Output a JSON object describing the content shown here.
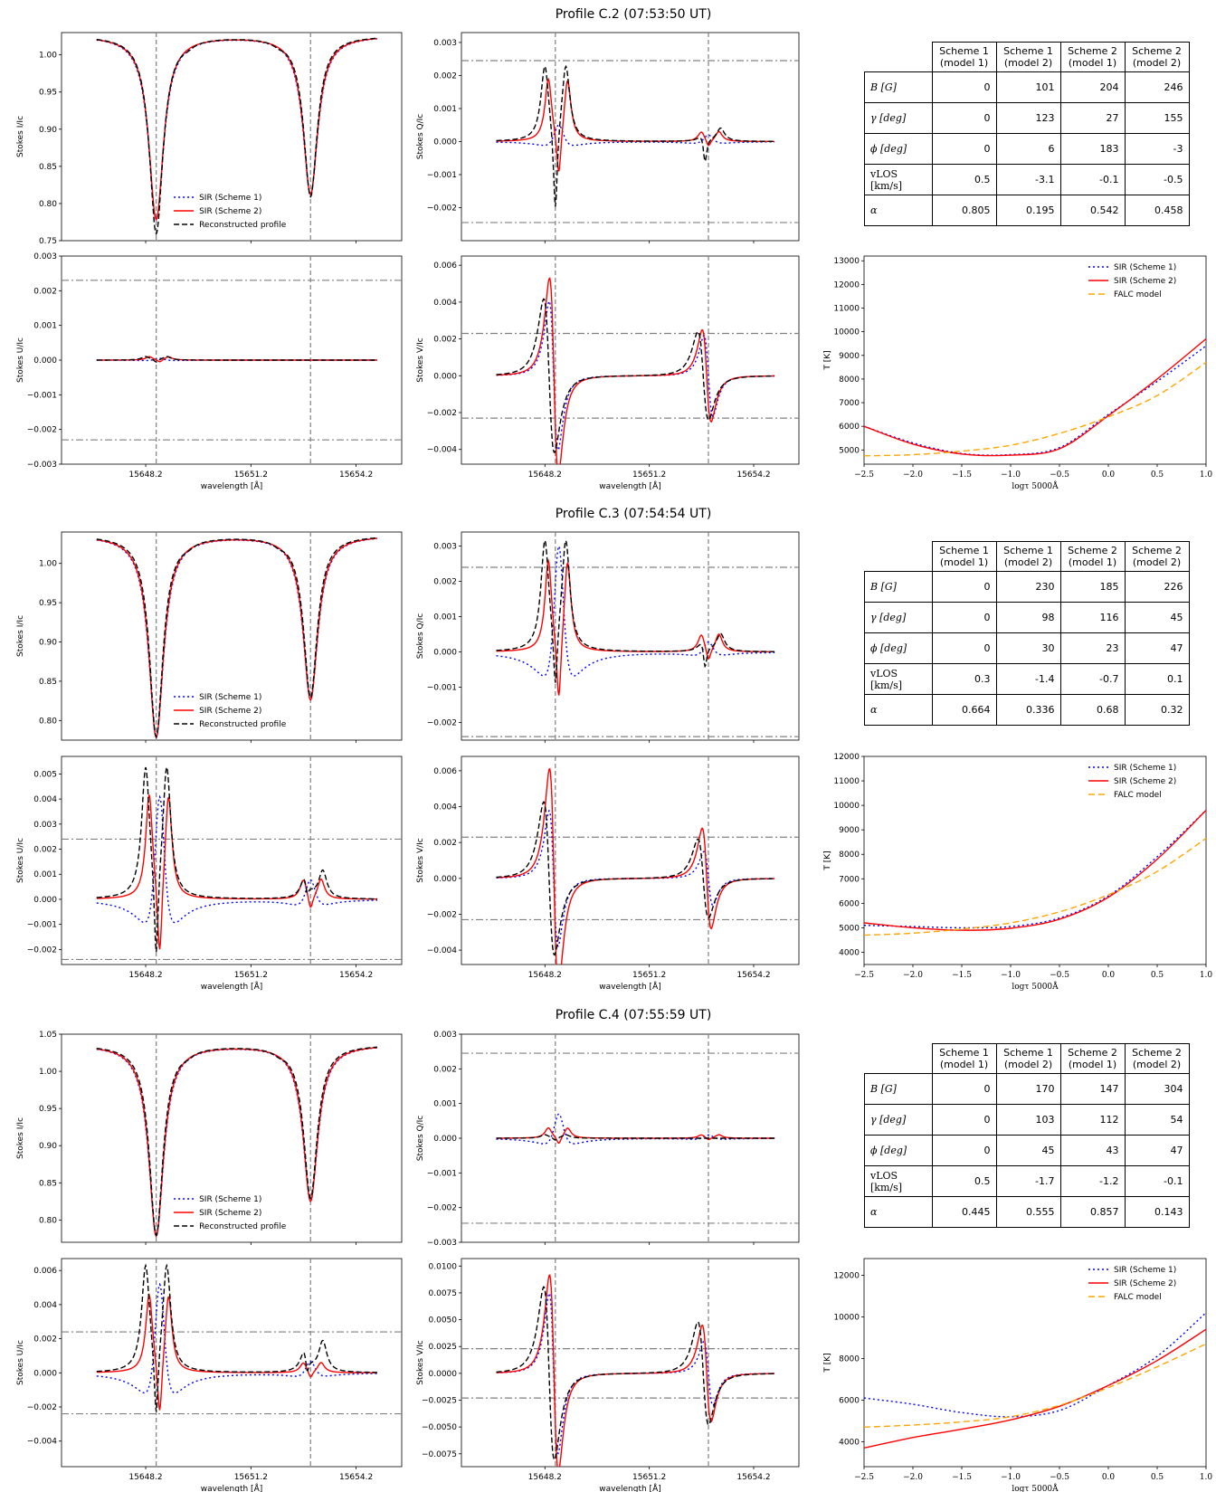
{
  "common": {
    "wavelength_ticks": [
      15648.2,
      15651.2,
      15654.2
    ],
    "wavelength_tick_labels": [
      "15648.2",
      "15651.2",
      "15654.2"
    ],
    "wavelength_xlabel": "wavelength [Å]",
    "line_centers": [
      15648.5,
      15652.9
    ],
    "xlim": [
      15645.8,
      15655.5
    ],
    "tau_xlabel": "logτ 5000Å",
    "tau_xlim": [
      -2.5,
      1.0
    ],
    "tau_ticks": [
      -2.5,
      -2.0,
      -1.5,
      -1.0,
      -0.5,
      0.0,
      0.5,
      1.0
    ],
    "tau_tick_labels": [
      "−2.5",
      "−2.0",
      "−1.5",
      "−1.0",
      "−0.5",
      "0.0",
      "0.5",
      "1.0"
    ],
    "ylabels": {
      "I": "Stokes I/Ic",
      "Q": "Stokes Q/Ic",
      "U": "Stokes U/Ic",
      "V": "Stokes V/Ic",
      "T": "T [K]"
    },
    "legend_stokes": [
      "SIR (Scheme 1)",
      "SIR (Scheme 2)",
      "Reconstructed profile"
    ],
    "legend_temp": [
      "SIR (Scheme 1)",
      "SIR (Scheme 2)",
      "FALC model"
    ],
    "colors": {
      "scheme1": "#0000ff",
      "scheme2": "#ff0000",
      "reconstructed": "#000000",
      "falc": "#ffa500",
      "guide": "#808080"
    },
    "table_columns": [
      "Scheme 1\n(model 1)",
      "Scheme 1\n(model 2)",
      "Scheme 2\n(model 1)",
      "Scheme 2\n(model 2)"
    ],
    "table_rows": [
      "B [G]",
      "γ [deg]",
      "ϕ [deg]",
      "vLOS [km/s]",
      "α"
    ]
  },
  "panels": [
    {
      "title": "Profile C.2 (07:53:50 UT)",
      "table_values": [
        [
          "0",
          "101",
          "204",
          "246"
        ],
        [
          "0",
          "123",
          "27",
          "155"
        ],
        [
          "0",
          "6",
          "183",
          "-3"
        ],
        [
          "0.5",
          "-3.1",
          "-0.1",
          "-0.5"
        ],
        [
          "0.805",
          "0.195",
          "0.542",
          "0.458"
        ]
      ],
      "chart_data": [
        {
          "type": "line",
          "panel": "I",
          "ylim": [
            0.75,
            1.03
          ],
          "yticks": [
            0.75,
            0.8,
            0.85,
            0.9,
            0.95,
            1.0
          ],
          "ytick_labels": [
            "0.75",
            "0.80",
            "0.85",
            "0.90",
            "0.95",
            "1.00"
          ],
          "continuum": 1.026,
          "depths": [
            0.779,
            0.813
          ],
          "rec_depths": [
            0.76,
            0.81
          ],
          "hlines": []
        },
        {
          "type": "line",
          "panel": "Q",
          "ylim": [
            -0.003,
            0.0033
          ],
          "yticks": [
            -0.002,
            -0.001,
            0,
            0.001,
            0.002,
            0.003
          ],
          "ytick_labels": [
            "−0.002",
            "−0.001",
            "0.000",
            "0.001",
            "0.002",
            "0.003"
          ],
          "kind": "Q",
          "amp1": [
            0.0005,
            0.0019,
            0.0023,
            0.0031
          ],
          "amp2": [
            0.0002,
            0.0003,
            0.0004,
            0.0011
          ],
          "hlines": [
            0.00245,
            -0.00245
          ]
        },
        {
          "type": "line",
          "panel": "U",
          "ylim": [
            -0.003,
            0.003
          ],
          "yticks": [
            -0.003,
            -0.002,
            -0.001,
            0,
            0.001,
            0.002,
            0.003
          ],
          "ytick_labels": [
            "−0.003",
            "−0.002",
            "−0.001",
            "0.000",
            "0.001",
            "0.002",
            "0.003"
          ],
          "kind": "U",
          "amp1": [
            5e-05,
            0.0001,
            0.0001,
            0.0001
          ],
          "amp2": [
            0,
            0,
            0,
            0
          ],
          "hlines": [
            0.0023,
            -0.0023
          ]
        },
        {
          "type": "line",
          "panel": "V",
          "ylim": [
            -0.0048,
            0.0065
          ],
          "yticks": [
            -0.004,
            -0.002,
            0,
            0.002,
            0.004,
            0.006
          ],
          "ytick_labels": [
            "−0.004",
            "−0.002",
            "0.000",
            "0.002",
            "0.004",
            "0.006"
          ],
          "kind": "V",
          "amp1": [
            0.0045,
            0.0059,
            0.0044
          ],
          "amp2": [
            0.0022,
            0.0025,
            0.0024
          ],
          "hlines": [
            0.0023,
            -0.0023
          ]
        },
        {
          "type": "line",
          "panel": "T",
          "ylim": [
            4400,
            13200
          ],
          "yticks": [
            5000,
            6000,
            7000,
            8000,
            9000,
            10000,
            11000,
            12000,
            13000
          ],
          "ytick_labels": [
            "5000",
            "6000",
            "7000",
            "8000",
            "9000",
            "10000",
            "11000",
            "12000",
            "13000"
          ],
          "s1": [
            [
              -2.5,
              6000
            ],
            [
              -2.0,
              5300
            ],
            [
              -1.5,
              4850
            ],
            [
              -1.0,
              4800
            ],
            [
              -0.5,
              5100
            ],
            [
              0.0,
              6500
            ],
            [
              0.5,
              7900
            ],
            [
              1.0,
              9400
            ]
          ],
          "s2": [
            [
              -2.5,
              6000
            ],
            [
              -2.0,
              5250
            ],
            [
              -1.5,
              4830
            ],
            [
              -1.0,
              4780
            ],
            [
              -0.5,
              5050
            ],
            [
              0.0,
              6450
            ],
            [
              0.5,
              8000
            ],
            [
              1.0,
              9700
            ]
          ],
          "falc": [
            [
              -2.5,
              4750
            ],
            [
              -2.0,
              4800
            ],
            [
              -1.5,
              4950
            ],
            [
              -1.0,
              5200
            ],
            [
              -0.5,
              5700
            ],
            [
              0.0,
              6400
            ],
            [
              0.5,
              7300
            ],
            [
              1.0,
              8700
            ]
          ]
        }
      ]
    },
    {
      "title": "Profile C.3 (07:54:54 UT)",
      "table_values": [
        [
          "0",
          "230",
          "185",
          "226"
        ],
        [
          "0",
          "98",
          "116",
          "45"
        ],
        [
          "0",
          "30",
          "23",
          "47"
        ],
        [
          "0.3",
          "-1.4",
          "-0.7",
          "0.1"
        ],
        [
          "0.664",
          "0.336",
          "0.68",
          "0.32"
        ]
      ],
      "chart_data": [
        {
          "type": "line",
          "panel": "I",
          "ylim": [
            0.775,
            1.04
          ],
          "yticks": [
            0.8,
            0.85,
            0.9,
            0.95,
            1.0
          ],
          "ytick_labels": [
            "0.80",
            "0.85",
            "0.90",
            "0.95",
            "1.00"
          ],
          "continuum": 1.036,
          "depths": [
            0.779,
            0.827
          ],
          "rec_depths": [
            0.78,
            0.83
          ],
          "hlines": []
        },
        {
          "type": "line",
          "panel": "Q",
          "ylim": [
            -0.0025,
            0.0034
          ],
          "yticks": [
            -0.002,
            -0.001,
            0,
            0.001,
            0.002,
            0.003
          ],
          "ytick_labels": [
            "−0.002",
            "−0.001",
            "0.000",
            "0.001",
            "0.002",
            "0.003"
          ],
          "kind": "Q3",
          "amp1": [
            0.003,
            0.0026,
            0.0031,
            0.0022
          ],
          "amp2": [
            0.0003,
            0.0005,
            0.0005,
            0.001
          ],
          "hlines": [
            0.0024,
            -0.0024
          ]
        },
        {
          "type": "line",
          "panel": "U",
          "ylim": [
            -0.0026,
            0.0057
          ],
          "yticks": [
            -0.002,
            -0.001,
            0,
            0.001,
            0.002,
            0.003,
            0.004,
            0.005
          ],
          "ytick_labels": [
            "−0.002",
            "−0.001",
            "0.000",
            "0.001",
            "0.002",
            "0.003",
            "0.004",
            "0.005"
          ],
          "kind": "U3",
          "amp1": [
            0.0041,
            0.0042,
            0.0052,
            0.0044
          ],
          "amp2": [
            0.0008,
            0.0008,
            0.0011,
            0.0009
          ],
          "hlines": [
            0.0024,
            -0.0024
          ]
        },
        {
          "type": "line",
          "panel": "V",
          "ylim": [
            -0.0048,
            0.0068
          ],
          "yticks": [
            -0.004,
            -0.002,
            0,
            0.002,
            0.004,
            0.006
          ],
          "ytick_labels": [
            "−0.004",
            "−0.002",
            "0.000",
            "0.002",
            "0.004",
            "0.006"
          ],
          "kind": "V",
          "amp1": [
            0.0042,
            0.0068,
            0.0045
          ],
          "amp2": [
            0.0015,
            0.0028,
            0.0022
          ],
          "hlines": [
            0.0023,
            -0.0023
          ]
        },
        {
          "type": "line",
          "panel": "T",
          "ylim": [
            3500,
            12000
          ],
          "yticks": [
            4000,
            5000,
            6000,
            7000,
            8000,
            9000,
            10000,
            11000,
            12000
          ],
          "ytick_labels": [
            "4000",
            "5000",
            "6000",
            "7000",
            "8000",
            "9000",
            "10000",
            "11000",
            "12000"
          ],
          "s1": [
            [
              -2.5,
              5100
            ],
            [
              -2.0,
              5050
            ],
            [
              -1.5,
              5000
            ],
            [
              -1.0,
              5050
            ],
            [
              -0.5,
              5400
            ],
            [
              0.0,
              6300
            ],
            [
              0.5,
              7900
            ],
            [
              1.0,
              9800
            ]
          ],
          "s2": [
            [
              -2.5,
              5200
            ],
            [
              -2.0,
              5000
            ],
            [
              -1.5,
              4900
            ],
            [
              -1.0,
              4980
            ],
            [
              -0.5,
              5350
            ],
            [
              0.0,
              6250
            ],
            [
              0.5,
              7800
            ],
            [
              1.0,
              9800
            ]
          ],
          "falc": [
            [
              -2.5,
              4700
            ],
            [
              -2.0,
              4780
            ],
            [
              -1.5,
              4950
            ],
            [
              -1.0,
              5200
            ],
            [
              -0.5,
              5650
            ],
            [
              0.0,
              6350
            ],
            [
              0.5,
              7300
            ],
            [
              1.0,
              8650
            ]
          ]
        }
      ]
    },
    {
      "title": "Profile C.4 (07:55:59 UT)",
      "table_values": [
        [
          "0",
          "170",
          "147",
          "304"
        ],
        [
          "0",
          "103",
          "112",
          "54"
        ],
        [
          "0",
          "45",
          "43",
          "47"
        ],
        [
          "0.5",
          "-1.7",
          "-1.2",
          "-0.1"
        ],
        [
          "0.445",
          "0.555",
          "0.857",
          "0.143"
        ]
      ],
      "chart_data": [
        {
          "type": "line",
          "panel": "I",
          "ylim": [
            0.77,
            1.05
          ],
          "yticks": [
            0.8,
            0.85,
            0.9,
            0.95,
            1.0,
            1.05
          ],
          "ytick_labels": [
            "0.80",
            "0.85",
            "0.90",
            "0.95",
            "1.00",
            "1.05"
          ],
          "continuum": 1.036,
          "depths": [
            0.779,
            0.826
          ],
          "rec_depths": [
            0.78,
            0.83
          ],
          "hlines": []
        },
        {
          "type": "line",
          "panel": "Q",
          "ylim": [
            -0.003,
            0.003
          ],
          "yticks": [
            -0.003,
            -0.002,
            -0.001,
            0,
            0.001,
            0.002,
            0.003
          ],
          "ytick_labels": [
            "−0.003",
            "−0.002",
            "−0.001",
            "0.000",
            "0.001",
            "0.002",
            "0.003"
          ],
          "kind": "Q4",
          "amp1": [
            0.0007,
            0.0003,
            0.0001,
            0.0001
          ],
          "amp2": [
            0.0001,
            0.0001,
            0,
            0
          ],
          "hlines": [
            0.00245,
            -0.00245
          ]
        },
        {
          "type": "line",
          "panel": "U",
          "ylim": [
            -0.0055,
            0.0067
          ],
          "yticks": [
            -0.004,
            -0.002,
            0,
            0.002,
            0.004,
            0.006
          ],
          "ytick_labels": [
            "−0.004",
            "−0.002",
            "0.000",
            "0.002",
            "0.004",
            "0.006"
          ],
          "kind": "U3",
          "amp1": [
            0.0052,
            0.0046,
            0.0062,
            0.005
          ],
          "amp2": [
            0.0007,
            0.0006,
            0.0018,
            0.0018
          ],
          "hlines": [
            0.0024,
            -0.0024
          ]
        },
        {
          "type": "line",
          "panel": "V",
          "ylim": [
            -0.0087,
            0.0107
          ],
          "yticks": [
            -0.0075,
            -0.005,
            -0.0025,
            0,
            0.0025,
            0.005,
            0.0075,
            0.01
          ],
          "ytick_labels": [
            "−0.0075",
            "−0.0050",
            "−0.0025",
            "0.0000",
            "0.0025",
            "0.0050",
            "0.0075",
            "0.0100"
          ],
          "kind": "V",
          "amp1": [
            0.0083,
            0.0102,
            0.0085
          ],
          "amp2": [
            0.003,
            0.0045,
            0.0048
          ],
          "hlines": [
            0.0023,
            -0.0023
          ]
        },
        {
          "type": "line",
          "panel": "T",
          "ylim": [
            2800,
            12800
          ],
          "yticks": [
            4000,
            6000,
            8000,
            10000,
            12000
          ],
          "ytick_labels": [
            "4000",
            "6000",
            "8000",
            "10000",
            "12000"
          ],
          "s1": [
            [
              -2.5,
              6100
            ],
            [
              -2.0,
              5800
            ],
            [
              -1.5,
              5400
            ],
            [
              -1.0,
              5200
            ],
            [
              -0.5,
              5500
            ],
            [
              0.0,
              6700
            ],
            [
              0.5,
              8100
            ],
            [
              1.0,
              10200
            ]
          ],
          "s2": [
            [
              -2.5,
              3700
            ],
            [
              -2.0,
              4200
            ],
            [
              -1.5,
              4600
            ],
            [
              -1.0,
              5050
            ],
            [
              -0.5,
              5700
            ],
            [
              0.0,
              6700
            ],
            [
              0.5,
              7900
            ],
            [
              1.0,
              9400
            ]
          ],
          "falc": [
            [
              -2.5,
              4700
            ],
            [
              -2.0,
              4800
            ],
            [
              -1.5,
              4950
            ],
            [
              -1.0,
              5200
            ],
            [
              -0.5,
              5750
            ],
            [
              0.0,
              6600
            ],
            [
              0.5,
              7600
            ],
            [
              1.0,
              8700
            ]
          ]
        }
      ]
    }
  ]
}
